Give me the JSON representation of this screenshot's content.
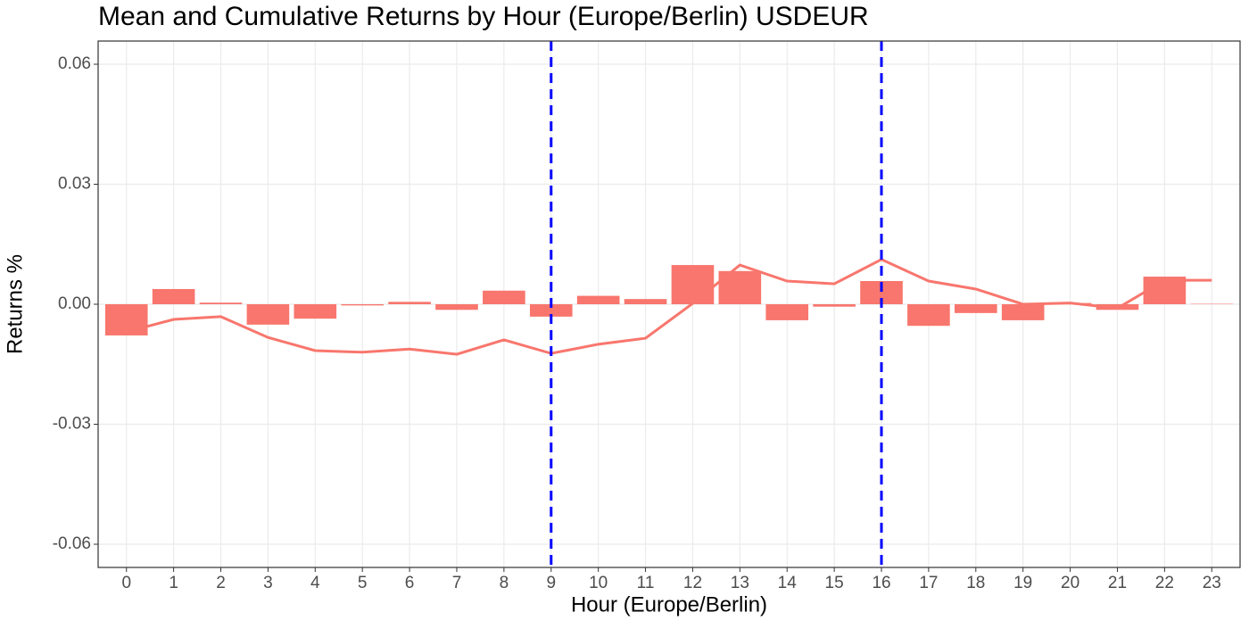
{
  "chart_data": {
    "type": "bar-line",
    "title": "Mean and Cumulative Returns by Hour (Europe/Berlin) USDEUR",
    "x_label": "Hour (Europe/Berlin)",
    "y_label": "Returns %",
    "categories": [
      "0",
      "1",
      "2",
      "3",
      "4",
      "5",
      "6",
      "7",
      "8",
      "9",
      "10",
      "11",
      "12",
      "13",
      "14",
      "15",
      "16",
      "17",
      "18",
      "19",
      "20",
      "21",
      "22",
      "23"
    ],
    "series": [
      {
        "kind": "bar",
        "color": "#F8766D",
        "values": [
          -0.0078,
          0.0038,
          0.0004,
          -0.0051,
          -0.0036,
          -0.0003,
          0.0006,
          -0.0014,
          0.0034,
          -0.0031,
          0.0021,
          0.0013,
          0.0098,
          0.0083,
          -0.004,
          -0.0006,
          0.0058,
          -0.0054,
          -0.0022,
          -0.004,
          0.0003,
          -0.0014,
          0.0069,
          0.0001
        ]
      },
      {
        "kind": "line",
        "color": "#F8766D",
        "values": [
          -0.0069,
          -0.0038,
          -0.0031,
          -0.0083,
          -0.0116,
          -0.012,
          -0.0112,
          -0.0125,
          -0.0089,
          -0.0123,
          -0.01,
          -0.0085,
          0.0002,
          0.0098,
          0.0058,
          0.0051,
          0.0112,
          0.0058,
          0.0038,
          0.0,
          0.0003,
          -0.001,
          0.006,
          0.006
        ]
      }
    ],
    "vlines": [
      9,
      16
    ],
    "vline_color": "#0000FF",
    "ylim": [
      -0.0658,
      0.0658
    ],
    "yticks": [
      -0.06,
      -0.03,
      {
        "value": 0,
        "label": "0.00"
      },
      0.03,
      0.06
    ],
    "grid": true
  }
}
